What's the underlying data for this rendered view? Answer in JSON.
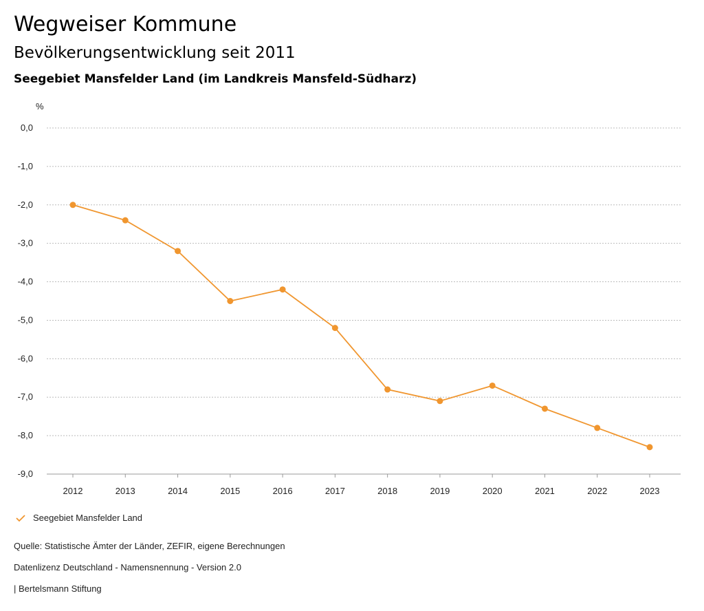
{
  "header": {
    "title": "Wegweiser Kommune",
    "subtitle": "Bevölkerungsentwicklung seit 2011",
    "region": "Seegebiet Mansfelder Land (im Landkreis Mansfeld-Südharz)"
  },
  "chart_data": {
    "type": "line",
    "ylabel": "%",
    "ylim": [
      -9,
      0
    ],
    "yticks": [
      "0,0",
      "-1,0",
      "-2,0",
      "-3,0",
      "-4,0",
      "-5,0",
      "-6,0",
      "-7,0",
      "-8,0",
      "-9,0"
    ],
    "categories": [
      "2012",
      "2013",
      "2014",
      "2015",
      "2016",
      "2017",
      "2018",
      "2019",
      "2020",
      "2021",
      "2022",
      "2023"
    ],
    "series": [
      {
        "name": "Seegebiet Mansfelder Land",
        "color": "#f0962f",
        "values": [
          -2.0,
          -2.4,
          -3.2,
          -4.5,
          -4.2,
          -5.2,
          -6.8,
          -7.1,
          -6.7,
          -7.3,
          -7.8,
          -8.3
        ]
      }
    ],
    "grid": true,
    "legend": "bottom-left"
  },
  "footer": {
    "source": "Quelle: Statistische Ämter der Länder, ZEFIR, eigene Berechnungen",
    "license": "Datenlizenz Deutschland - Namensnennung - Version 2.0",
    "brand": "| Bertelsmann Stiftung"
  }
}
